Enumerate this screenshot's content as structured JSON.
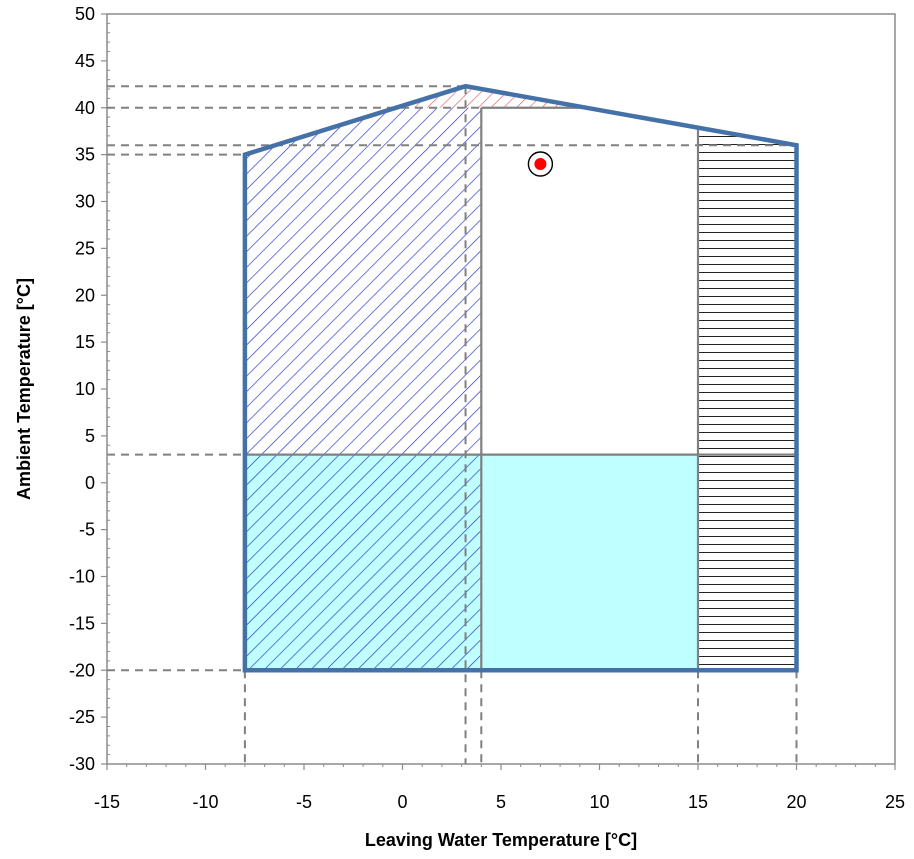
{
  "chart_data": {
    "type": "scatter",
    "title": "",
    "xlabel": "Leaving Water Temperature [°C]",
    "ylabel": "Ambient Temperature [°C]",
    "xlim": [
      -15,
      25
    ],
    "ylim": [
      -30,
      50
    ],
    "x_ticks": [
      -15,
      -10,
      -5,
      0,
      5,
      10,
      15,
      20,
      25
    ],
    "y_ticks": [
      50,
      45,
      40,
      35,
      30,
      25,
      20,
      15,
      10,
      5,
      0,
      -5,
      -10,
      -15,
      -20,
      -25,
      -30
    ],
    "x_tick_labels": [
      "-15",
      "-10",
      "-5",
      "0",
      "5",
      "10",
      "15",
      "20",
      "25"
    ],
    "y_tick_labels": [
      "50",
      "45",
      "40",
      "35",
      "30",
      "25",
      "20",
      "15",
      "10",
      "5",
      "0",
      "-5",
      "-10",
      "-15",
      "-20",
      "-25",
      "-30"
    ],
    "grid": false,
    "envelope": {
      "color": "#4472a8",
      "points": [
        [
          -8,
          -20
        ],
        [
          -8,
          35
        ],
        [
          3.2,
          42.3
        ],
        [
          20,
          36
        ],
        [
          20,
          -20
        ]
      ]
    },
    "regions": [
      {
        "pattern": "fill",
        "color": "#bfffff",
        "polygon": [
          [
            -8,
            -20
          ],
          [
            -8,
            3
          ],
          [
            15,
            3
          ],
          [
            15,
            -20
          ]
        ]
      },
      {
        "pattern": "diagonal",
        "color": "#2030c8",
        "polygon": [
          [
            -8,
            -20
          ],
          [
            -8,
            35
          ],
          [
            3.2,
            42.3
          ],
          [
            4,
            42.1
          ],
          [
            4,
            -20
          ]
        ]
      },
      {
        "pattern": "diagonal",
        "color": "#e05050",
        "polygon": [
          [
            0,
            40
          ],
          [
            3.2,
            42.3
          ],
          [
            9.5,
            40
          ]
        ]
      },
      {
        "pattern": "horizontal",
        "color": "#222222",
        "polygon": [
          [
            15,
            -20
          ],
          [
            15,
            37.8
          ],
          [
            20,
            36
          ],
          [
            20,
            -20
          ]
        ]
      }
    ],
    "region_borders": [
      [
        [
          -8,
          3
        ],
        [
          20,
          3
        ]
      ],
      [
        [
          4,
          -20
        ],
        [
          4,
          40
        ]
      ],
      [
        [
          4,
          40
        ],
        [
          9.5,
          40
        ]
      ],
      [
        [
          15,
          -20
        ],
        [
          15,
          37.8
        ]
      ]
    ],
    "reference_lines": [
      [
        [
          -15,
          42.3
        ],
        [
          3.2,
          42.3
        ]
      ],
      [
        [
          -15,
          40
        ],
        [
          4,
          40
        ]
      ],
      [
        [
          -15,
          36
        ],
        [
          20,
          36
        ]
      ],
      [
        [
          -15,
          35
        ],
        [
          -8,
          35
        ]
      ],
      [
        [
          -15,
          3
        ],
        [
          -8,
          3
        ]
      ],
      [
        [
          -15,
          -20
        ],
        [
          -8,
          -20
        ]
      ],
      [
        [
          -8,
          -20
        ],
        [
          -8,
          -30
        ]
      ],
      [
        [
          3.2,
          42.3
        ],
        [
          3.2,
          -30
        ]
      ],
      [
        [
          4,
          -20
        ],
        [
          4,
          -30
        ]
      ],
      [
        [
          15,
          -20
        ],
        [
          15,
          -30
        ]
      ],
      [
        [
          20,
          -20
        ],
        [
          20,
          -30
        ]
      ]
    ],
    "series": [
      {
        "values": [
          [
            7,
            34
          ]
        ],
        "color": "#ff0000",
        "marker": "dot-in-circle"
      }
    ]
  }
}
